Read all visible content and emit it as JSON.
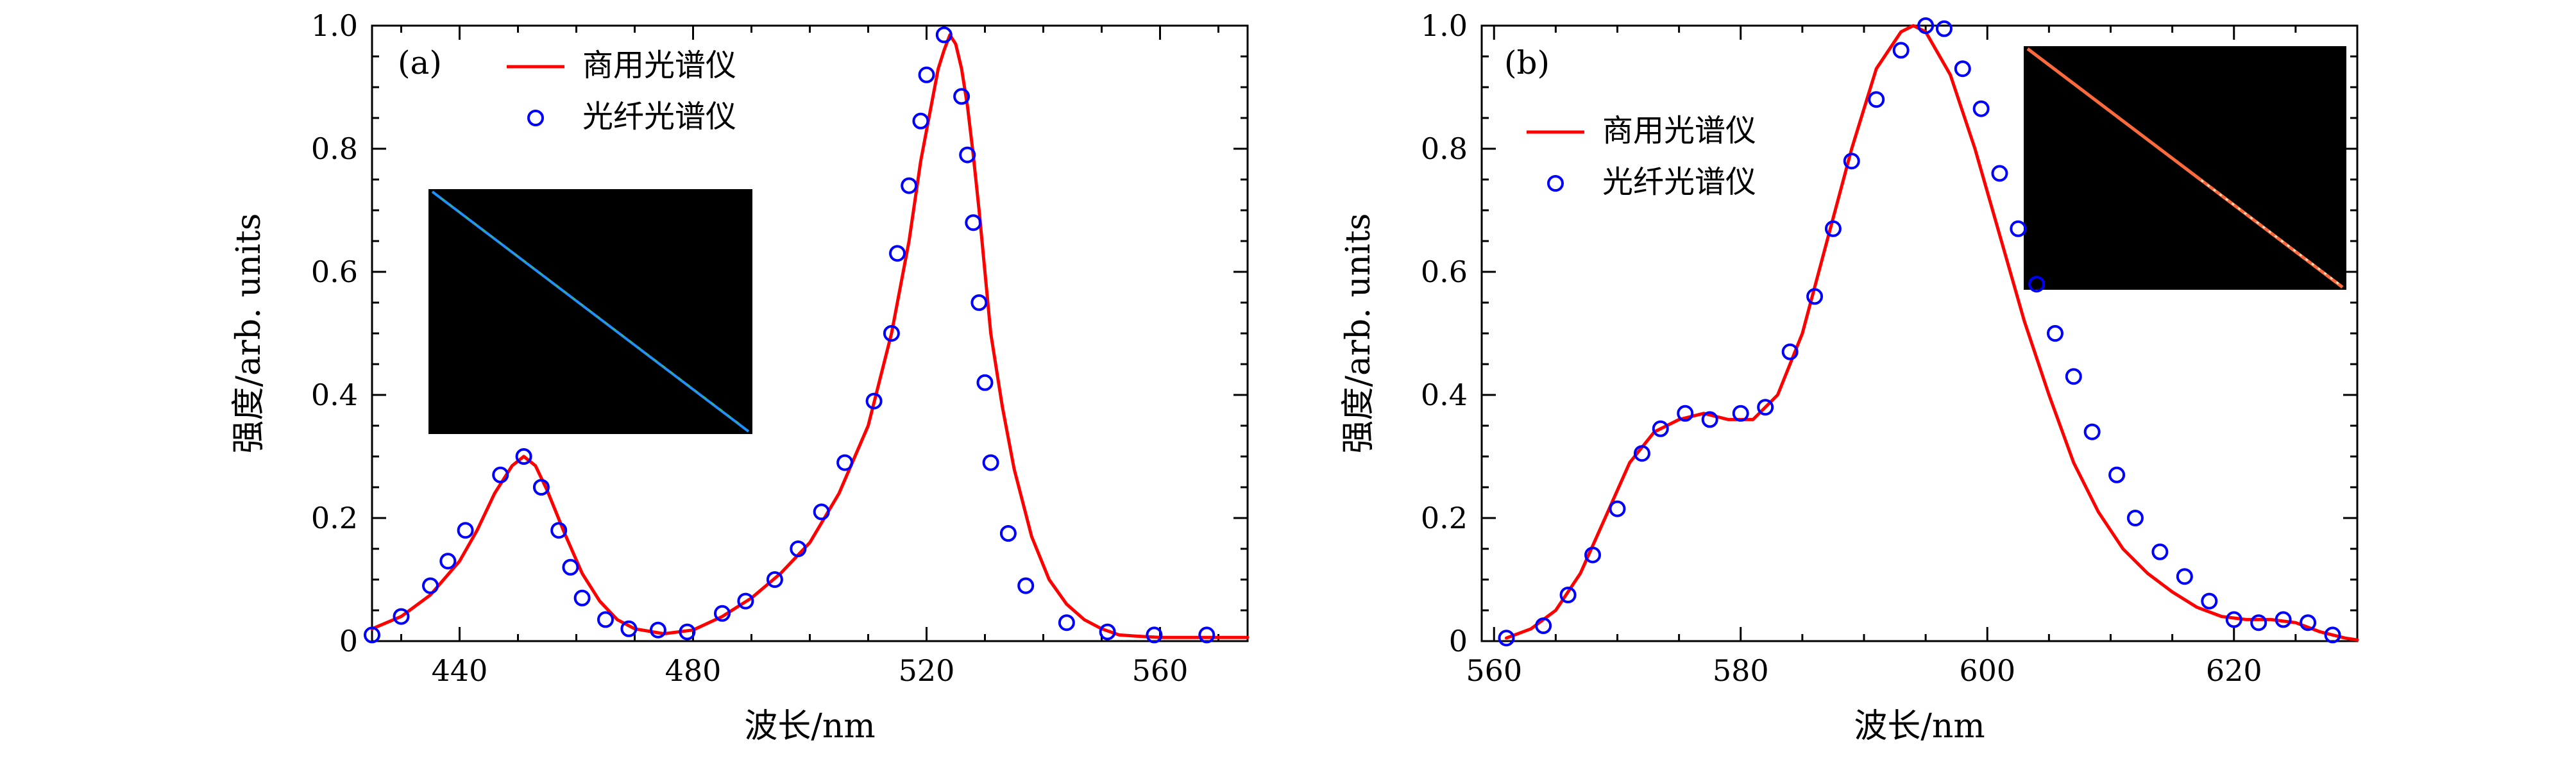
{
  "chart_data": [
    {
      "type": "line",
      "panel_label": "(a)",
      "xlabel": "波长/nm",
      "ylabel": "强度/arb. units",
      "xlim": [
        425,
        575
      ],
      "ylim": [
        0,
        1.0
      ],
      "xticks": [
        440,
        480,
        520,
        560
      ],
      "yticks": [
        0,
        0.2,
        0.4,
        0.6,
        0.8,
        1.0
      ],
      "ytick_labels": [
        "0",
        "0.2",
        "0.4",
        "0.6",
        "0.8",
        "1.0"
      ],
      "legend_position": "top-left",
      "grid": false,
      "inset": "image",
      "inset_tint": "blue",
      "series": [
        {
          "name": "商用光谱仪",
          "kind": "line",
          "color": "#ff0000",
          "x": [
            425,
            430,
            435,
            440,
            443,
            446,
            449,
            451,
            453,
            455,
            458,
            461,
            464,
            467,
            470,
            475,
            480,
            485,
            490,
            495,
            500,
            505,
            510,
            514,
            517,
            519,
            521,
            522,
            523,
            524,
            525,
            526,
            527,
            528,
            529,
            530,
            531,
            533,
            535,
            538,
            541,
            544,
            547,
            550,
            553,
            556,
            560,
            565,
            570,
            575
          ],
          "y": [
            0.02,
            0.04,
            0.075,
            0.13,
            0.18,
            0.24,
            0.285,
            0.3,
            0.285,
            0.245,
            0.175,
            0.11,
            0.065,
            0.035,
            0.02,
            0.012,
            0.018,
            0.04,
            0.07,
            0.11,
            0.16,
            0.24,
            0.35,
            0.5,
            0.65,
            0.78,
            0.88,
            0.93,
            0.96,
            0.985,
            0.97,
            0.93,
            0.87,
            0.79,
            0.7,
            0.6,
            0.5,
            0.38,
            0.28,
            0.17,
            0.1,
            0.06,
            0.035,
            0.02,
            0.01,
            0.008,
            0.006,
            0.006,
            0.006,
            0.006
          ]
        },
        {
          "name": "光纤光谱仪",
          "kind": "scatter",
          "color": "#0000ff",
          "x": [
            425,
            430,
            435,
            438,
            441,
            447,
            451,
            454,
            457,
            459,
            461,
            465,
            469,
            474,
            479,
            485,
            489,
            494,
            498,
            502,
            506,
            511,
            514,
            515,
            517,
            519,
            520,
            523,
            526,
            527,
            528,
            529,
            530,
            531,
            534,
            537,
            544,
            551,
            559,
            568
          ],
          "y": [
            0.01,
            0.04,
            0.09,
            0.13,
            0.18,
            0.27,
            0.3,
            0.25,
            0.18,
            0.12,
            0.07,
            0.035,
            0.02,
            0.018,
            0.015,
            0.045,
            0.065,
            0.1,
            0.15,
            0.21,
            0.29,
            0.39,
            0.5,
            0.63,
            0.74,
            0.845,
            0.92,
            0.985,
            0.885,
            0.79,
            0.68,
            0.55,
            0.42,
            0.29,
            0.175,
            0.09,
            0.03,
            0.015,
            0.01,
            0.01
          ]
        }
      ]
    },
    {
      "type": "line",
      "panel_label": "(b)",
      "xlabel": "波长/nm",
      "ylabel": "强度/arb. units",
      "xlim": [
        559,
        630
      ],
      "ylim": [
        0,
        1.0
      ],
      "xticks": [
        560,
        580,
        600,
        620
      ],
      "yticks": [
        0,
        0.2,
        0.4,
        0.6,
        0.8,
        1.0
      ],
      "ytick_labels": [
        "0",
        "0.2",
        "0.4",
        "0.6",
        "0.8",
        "1.0"
      ],
      "legend_position": "left",
      "grid": false,
      "inset": "image",
      "inset_tint": "orange",
      "series": [
        {
          "name": "商用光谱仪",
          "kind": "line",
          "color": "#ff0000",
          "x": [
            561,
            563,
            565,
            567,
            569,
            571,
            573,
            575,
            577,
            579,
            581,
            583,
            585,
            587,
            589,
            591,
            593,
            594,
            595,
            597,
            599,
            601,
            603,
            605,
            607,
            609,
            611,
            613,
            615,
            617,
            619,
            621,
            623,
            625,
            627,
            629,
            630
          ],
          "y": [
            0.005,
            0.02,
            0.05,
            0.11,
            0.2,
            0.29,
            0.34,
            0.36,
            0.37,
            0.36,
            0.36,
            0.4,
            0.5,
            0.65,
            0.8,
            0.93,
            0.99,
            1.0,
            0.99,
            0.92,
            0.8,
            0.66,
            0.52,
            0.4,
            0.29,
            0.21,
            0.15,
            0.11,
            0.08,
            0.055,
            0.04,
            0.035,
            0.035,
            0.03,
            0.015,
            0.005,
            0.002
          ]
        },
        {
          "name": "光纤光谱仪",
          "kind": "scatter",
          "color": "#0000ff",
          "x": [
            561,
            564,
            566,
            568,
            570,
            572,
            573.5,
            575.5,
            577.5,
            580,
            582,
            584,
            586,
            587.5,
            589,
            591,
            593,
            595,
            596.5,
            598,
            599.5,
            601,
            602.5,
            604,
            605.5,
            607,
            608.5,
            610.5,
            612,
            614,
            616,
            618,
            620,
            622,
            624,
            626,
            628
          ],
          "y": [
            0.005,
            0.025,
            0.075,
            0.14,
            0.215,
            0.305,
            0.345,
            0.37,
            0.36,
            0.37,
            0.38,
            0.47,
            0.56,
            0.67,
            0.78,
            0.88,
            0.96,
            1.0,
            0.995,
            0.93,
            0.865,
            0.76,
            0.67,
            0.58,
            0.5,
            0.43,
            0.34,
            0.27,
            0.2,
            0.145,
            0.105,
            0.065,
            0.035,
            0.03,
            0.035,
            0.03,
            0.01
          ]
        }
      ]
    }
  ]
}
